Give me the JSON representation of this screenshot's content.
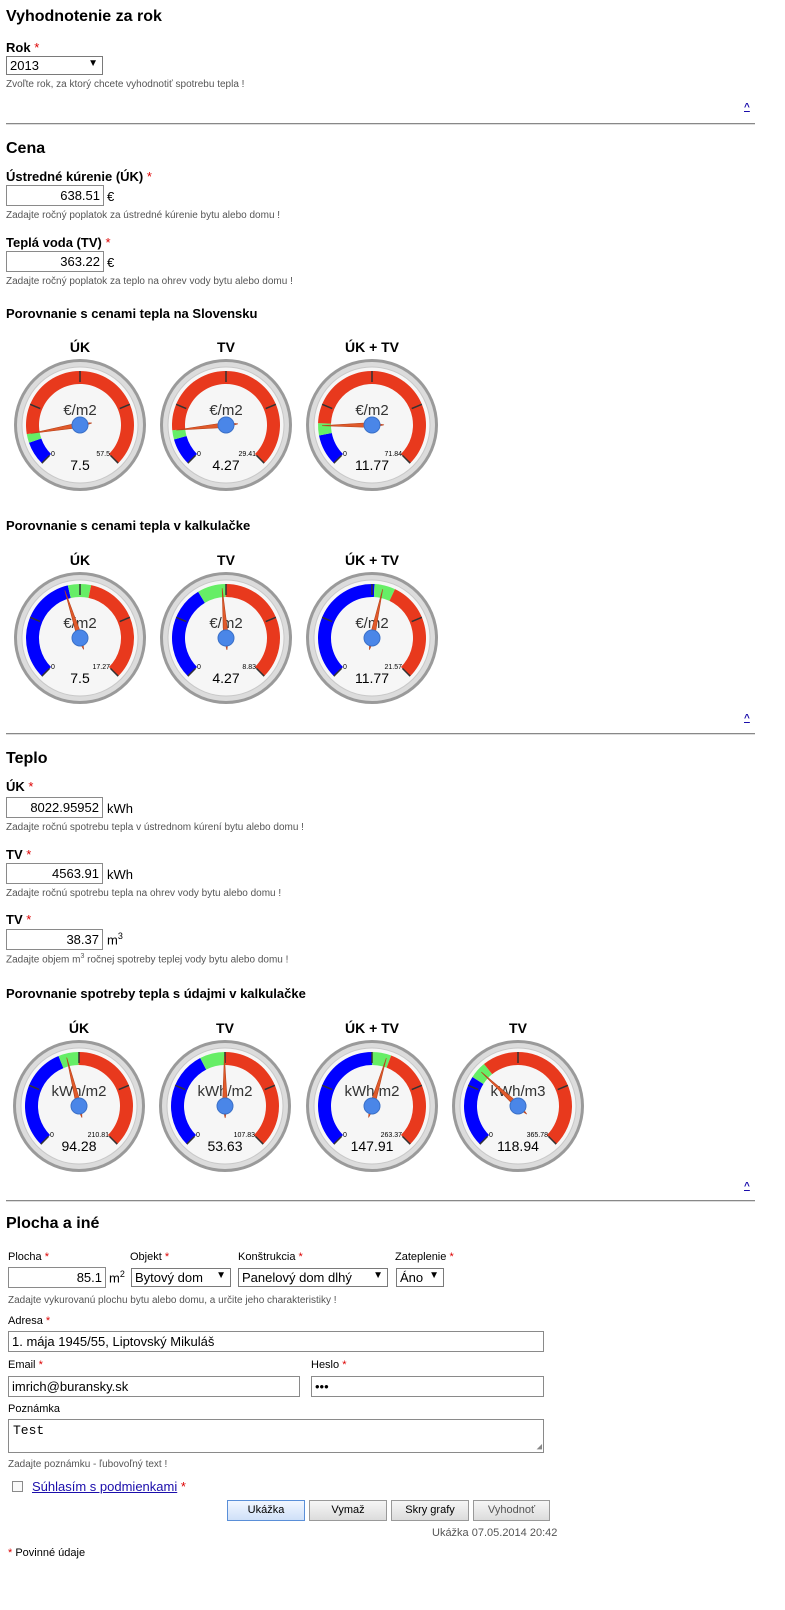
{
  "year_section": {
    "title": "Vyhodnotenie za rok",
    "rok_label": "Rok",
    "rok_value": "2013",
    "rok_hint": "Zvoľte rok, za ktorý chcete vyhodnotiť spotrebu tepla !"
  },
  "up_link": "^",
  "required_mark": "*",
  "cena": {
    "title": "Cena",
    "uk_label": "Ústredné kúrenie (ÚK)",
    "uk_value": "638.51",
    "uk_unit": "€",
    "uk_hint": "Zadajte ročný poplatok za ústredné kúrenie bytu alebo domu !",
    "tv_label": "Teplá voda (TV)",
    "tv_value": "363.22",
    "tv_unit": "€",
    "tv_hint": "Zadajte ročný poplatok za teplo na ohrev vody bytu alebo domu !",
    "chart1_title": "Porovnanie s cenami tepla na Slovensku",
    "chart2_title": "Porovnanie s cenami tepla v kalkulačke"
  },
  "teplo": {
    "title": "Teplo",
    "uk_label": "ÚK",
    "uk_value": "8022.95952",
    "uk_unit": "kWh",
    "uk_hint": "Zadajte ročnú spotrebu tepla v ústrednom kúrení bytu alebo domu !",
    "tv_label": "TV",
    "tv_value": "4563.91",
    "tv_unit": "kWh",
    "tv_hint": "Zadajte ročnú spotrebu tepla na ohrev vody bytu alebo domu !",
    "tv2_label": "TV",
    "tv2_value": "38.37",
    "tv2_unit": "m",
    "tv2_unit_sup": "3",
    "tv2_hint_a": "Zadajte objem m",
    "tv2_hint_sup": "3",
    "tv2_hint_b": " ročnej spotreby teplej vody bytu alebo domu !",
    "chart3_title": "Porovnanie spotreby tepla s údajmi v kalkulačke"
  },
  "chart_data": [
    {
      "type": "gauge",
      "title": "Porovnanie s cenami tepla na Slovensku",
      "gauges": [
        {
          "title": "ÚK",
          "unit": "€/m2",
          "value": 7.5,
          "display": "7.5",
          "min": 0,
          "max": 57.5,
          "min_label": "0",
          "max_label": "57.5",
          "bands": [
            {
              "from": 0,
              "to": 5.5,
              "color": "#0000ff"
            },
            {
              "from": 5.5,
              "to": 7.5,
              "color": "#66ee66"
            },
            {
              "from": 7.5,
              "to": 57.5,
              "color": "#e8391d"
            }
          ]
        },
        {
          "title": "TV",
          "unit": "€/m2",
          "value": 4.27,
          "display": "4.27",
          "min": 0,
          "max": 29.41,
          "min_label": "0",
          "max_label": "29.41",
          "bands": [
            {
              "from": 0,
              "to": 3.2,
              "color": "#0000ff"
            },
            {
              "from": 3.2,
              "to": 4.3,
              "color": "#66ee66"
            },
            {
              "from": 4.3,
              "to": 29.41,
              "color": "#e8391d"
            }
          ]
        },
        {
          "title": "ÚK + TV",
          "unit": "€/m2",
          "value": 11.77,
          "display": "11.77",
          "min": 0,
          "max": 71.84,
          "min_label": "0",
          "max_label": "71.84",
          "bands": [
            {
              "from": 0,
              "to": 9,
              "color": "#0000ff"
            },
            {
              "from": 9,
              "to": 12.5,
              "color": "#66ee66"
            },
            {
              "from": 12.5,
              "to": 71.84,
              "color": "#e8391d"
            }
          ]
        }
      ]
    },
    {
      "type": "gauge",
      "title": "Porovnanie s cenami tepla v kalkulačke",
      "gauges": [
        {
          "title": "ÚK",
          "unit": "€/m2",
          "value": 7.5,
          "display": "7.5",
          "min": 0,
          "max": 17.27,
          "min_label": "0",
          "max_label": "17.27",
          "bands": [
            {
              "from": 0,
              "to": 7.8,
              "color": "#0000ff"
            },
            {
              "from": 7.8,
              "to": 9.4,
              "color": "#66ee66"
            },
            {
              "from": 9.4,
              "to": 17.27,
              "color": "#e8391d"
            }
          ]
        },
        {
          "title": "TV",
          "unit": "€/m2",
          "value": 4.27,
          "display": "4.27",
          "min": 0,
          "max": 8.83,
          "min_label": "0",
          "max_label": "8.83",
          "bands": [
            {
              "from": 0,
              "to": 3.4,
              "color": "#0000ff"
            },
            {
              "from": 3.4,
              "to": 4.4,
              "color": "#66ee66"
            },
            {
              "from": 4.4,
              "to": 8.83,
              "color": "#e8391d"
            }
          ]
        },
        {
          "title": "ÚK + TV",
          "unit": "€/m2",
          "value": 11.77,
          "display": "11.77",
          "min": 0,
          "max": 21.57,
          "min_label": "0",
          "max_label": "21.57",
          "bands": [
            {
              "from": 0,
              "to": 11,
              "color": "#0000ff"
            },
            {
              "from": 11,
              "to": 12.8,
              "color": "#66ee66"
            },
            {
              "from": 12.8,
              "to": 21.57,
              "color": "#e8391d"
            }
          ]
        }
      ]
    },
    {
      "type": "gauge",
      "title": "Porovnanie spotreby tepla s údajmi v kalkulačke",
      "gauges": [
        {
          "title": "ÚK",
          "unit": "kWh/m2",
          "value": 94.28,
          "display": "94.28",
          "min": 0,
          "max": 210.81,
          "min_label": "0",
          "max_label": "210.81",
          "bands": [
            {
              "from": 0,
              "to": 88,
              "color": "#0000ff"
            },
            {
              "from": 88,
              "to": 105,
              "color": "#66ee66"
            },
            {
              "from": 105,
              "to": 210.81,
              "color": "#e8391d"
            }
          ]
        },
        {
          "title": "TV",
          "unit": "kWh/m2",
          "value": 53.63,
          "display": "53.63",
          "min": 0,
          "max": 107.83,
          "min_label": "0",
          "max_label": "107.83",
          "bands": [
            {
              "from": 0,
              "to": 43,
              "color": "#0000ff"
            },
            {
              "from": 43,
              "to": 54,
              "color": "#66ee66"
            },
            {
              "from": 54,
              "to": 107.83,
              "color": "#e8391d"
            }
          ]
        },
        {
          "title": "ÚK + TV",
          "unit": "kWh/m2",
          "value": 147.91,
          "display": "147.91",
          "min": 0,
          "max": 263.37,
          "min_label": "0",
          "max_label": "263.37",
          "bands": [
            {
              "from": 0,
              "to": 132,
              "color": "#0000ff"
            },
            {
              "from": 132,
              "to": 152,
              "color": "#66ee66"
            },
            {
              "from": 152,
              "to": 263.37,
              "color": "#e8391d"
            }
          ]
        },
        {
          "title": "TV",
          "unit": "kWh/m3",
          "value": 118.94,
          "display": "118.94",
          "min": 0,
          "max": 365.78,
          "min_label": "0",
          "max_label": "365.78",
          "bands": [
            {
              "from": 0,
              "to": 105,
              "color": "#0000ff"
            },
            {
              "from": 105,
              "to": 130,
              "color": "#66ee66"
            },
            {
              "from": 130,
              "to": 365.78,
              "color": "#e8391d"
            }
          ]
        }
      ]
    }
  ],
  "plocha": {
    "title": "Plocha a iné",
    "plocha_label": "Plocha",
    "plocha_value": "85.1",
    "plocha_unit": "m",
    "plocha_unit_sup": "2",
    "objekt_label": "Objekt",
    "objekt_value": "Bytový dom",
    "konstrukcia_label": "Konštrukcia",
    "konstrukcia_value": "Panelový dom dlhý",
    "zateplenie_label": "Zateplenie",
    "zateplenie_value": "Áno",
    "hint": "Zadajte vykurovanú plochu bytu alebo domu, a určite jeho charakteristiky !",
    "adresa_label": "Adresa",
    "adresa_value": "1. mája 1945/55, Liptovský Mikuláš",
    "email_label": "Email",
    "email_value": "imrich@buransky.sk",
    "heslo_label": "Heslo",
    "heslo_value": "•••",
    "poznamka_label": "Poznámka",
    "poznamka_value": "Test",
    "poznamka_hint": "Zadajte poznámku - ľubovoľný text !",
    "suhlas_label": "Súhlasím s podmienkami"
  },
  "buttons": {
    "ukazka": "Ukážka",
    "vymaz": "Vymaž",
    "skry_grafy": "Skry grafy",
    "vyhodnot": "Vyhodnoť"
  },
  "footer": {
    "status": "Ukážka 07.05.2014 20:42",
    "required_note": "Povinné údaje"
  }
}
